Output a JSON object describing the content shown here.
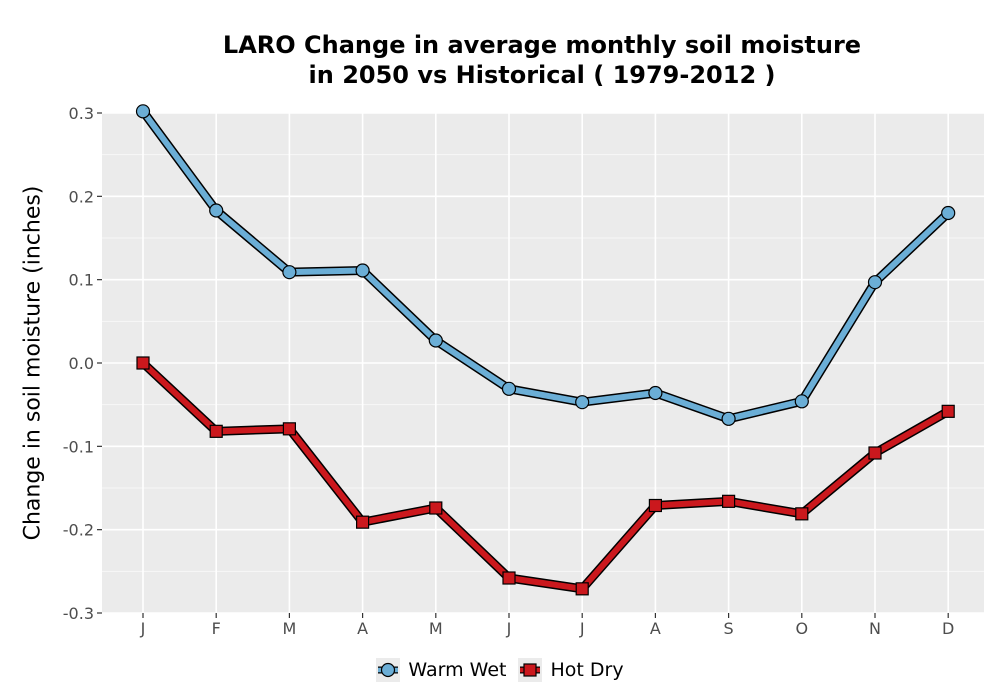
{
  "chart_data": {
    "type": "line",
    "title": "LARO  Change in average monthly soil moisture in 2050 vs Historical ( 1979-2012 )",
    "title_lines": [
      "LARO  Change in average monthly soil moisture",
      "in 2050 vs Historical ( 1979-2012 )"
    ],
    "ylabel": "Change in soil moisture (inches)",
    "xlabel": "",
    "categories": [
      "J",
      "F",
      "M",
      "A",
      "M",
      "J",
      "J",
      "A",
      "S",
      "O",
      "N",
      "D"
    ],
    "ylim": [
      -0.3,
      0.3
    ],
    "yticks": [
      -0.3,
      -0.2,
      -0.1,
      0.0,
      0.1,
      0.2,
      0.3
    ],
    "ytick_labels": [
      "-0.3",
      "-0.2",
      "-0.1",
      "0.0",
      "0.1",
      "0.2",
      "0.3"
    ],
    "grid": true,
    "legend_position": "bottom",
    "series": [
      {
        "name": "Warm Wet",
        "color": "#6baed6",
        "marker": "circle",
        "values": [
          0.302,
          0.183,
          0.109,
          0.111,
          0.027,
          -0.031,
          -0.047,
          -0.036,
          -0.067,
          -0.046,
          0.097,
          0.18
        ]
      },
      {
        "name": "Hot Dry",
        "color": "#cb181d",
        "marker": "square",
        "values": [
          0.0,
          -0.082,
          -0.079,
          -0.191,
          -0.174,
          -0.258,
          -0.271,
          -0.171,
          -0.166,
          -0.181,
          -0.108,
          -0.058
        ]
      }
    ]
  }
}
